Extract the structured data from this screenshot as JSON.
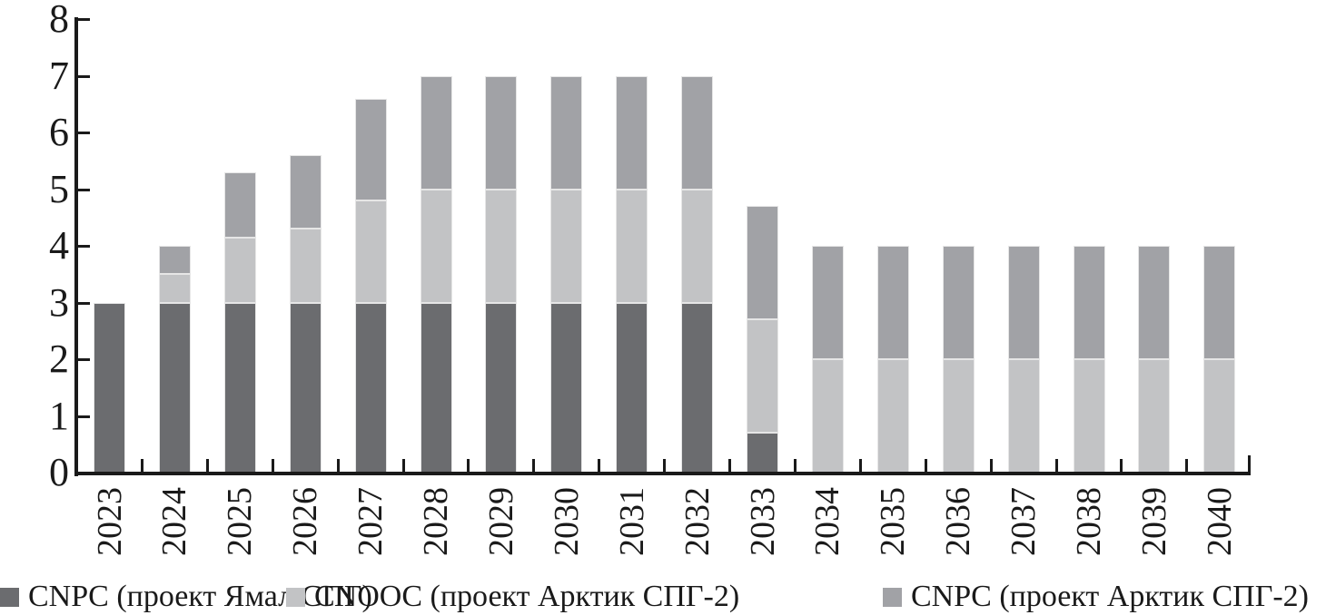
{
  "chart_data": {
    "type": "bar",
    "stacked": true,
    "title": "",
    "xlabel": "",
    "ylabel": "",
    "categories": [
      "2023",
      "2024",
      "2025",
      "2026",
      "2027",
      "2028",
      "2029",
      "2030",
      "2031",
      "2032",
      "2033",
      "2034",
      "2035",
      "2036",
      "2037",
      "2038",
      "2039",
      "2040"
    ],
    "series": [
      {
        "name": "CNPC (проект Ямал СПГ)",
        "color": "#6b6c6f",
        "values": [
          3,
          3,
          3,
          3,
          3,
          3,
          3,
          3,
          3,
          3,
          0.7,
          0,
          0,
          0,
          0,
          0,
          0,
          0
        ]
      },
      {
        "name": "CNOOC (проект Арктик СПГ-2)",
        "color": "#c2c3c5",
        "values": [
          0,
          0.5,
          1.15,
          1.3,
          1.8,
          2,
          2,
          2,
          2,
          2,
          2,
          2,
          2,
          2,
          2,
          2,
          2,
          2
        ]
      },
      {
        "name": "CNPC (проект Арктик СПГ-2)",
        "color": "#a1a2a6",
        "values": [
          0,
          0.5,
          1.15,
          1.3,
          1.8,
          2,
          2,
          2,
          2,
          2,
          2,
          2,
          2,
          2,
          2,
          2,
          2,
          2
        ]
      }
    ],
    "totals_by_year": [
      3,
      4,
      5.3,
      5.6,
      6.6,
      7,
      7,
      7,
      7,
      7,
      4.7,
      4,
      4,
      4,
      4,
      4,
      4,
      4
    ],
    "ylim": [
      0,
      8
    ],
    "yticks": [
      "0",
      "1",
      "2",
      "3",
      "4",
      "5",
      "6",
      "7",
      "8"
    ],
    "grid": false,
    "legend_position": "bottom",
    "axis_color": "#1a1a1a"
  }
}
